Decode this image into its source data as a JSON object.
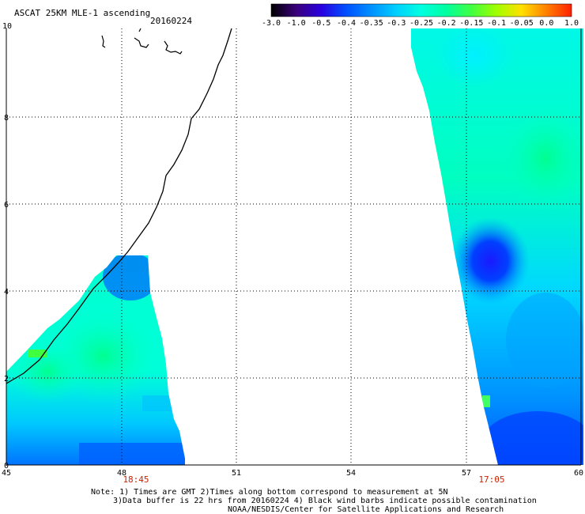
{
  "header": {
    "title": "ASCAT 25KM MLE-1 ascending",
    "date": "20160224"
  },
  "colorbar": {
    "labels": [
      "-3.0",
      "-1.0",
      "-0.5",
      "-0.4",
      "-0.35",
      "-0.3",
      "-0.25",
      "-0.2",
      "-0.15",
      "-0.1",
      "-0.05",
      "0.0",
      "1.0"
    ],
    "colors": [
      "#000000",
      "#3a007a",
      "#2800e0",
      "#0050ff",
      "#0090ff",
      "#00d0ff",
      "#00ffe0",
      "#00ffa0",
      "#40ff40",
      "#a0ff00",
      "#ffe000",
      "#ff8000",
      "#ff2000"
    ]
  },
  "map": {
    "x_ticks": [
      "45",
      "48",
      "51",
      "54",
      "57",
      "60"
    ],
    "y_ticks": [
      "0",
      "2",
      "4",
      "6",
      "8",
      "10"
    ],
    "time_labels": [
      "18:45",
      "17:05"
    ],
    "time_label_color": "#cc2200"
  },
  "footer": {
    "note_line1": "Note: 1) Times are GMT 2)Times along bottom correspond to measurement at 5N",
    "note_line2": "3)Data buffer is 22 hrs from 20160224 4) Black wind barbs indicate possible contamination",
    "note_line3": "NOAA/NESDIS/Center for Satellite Applications and Research"
  }
}
